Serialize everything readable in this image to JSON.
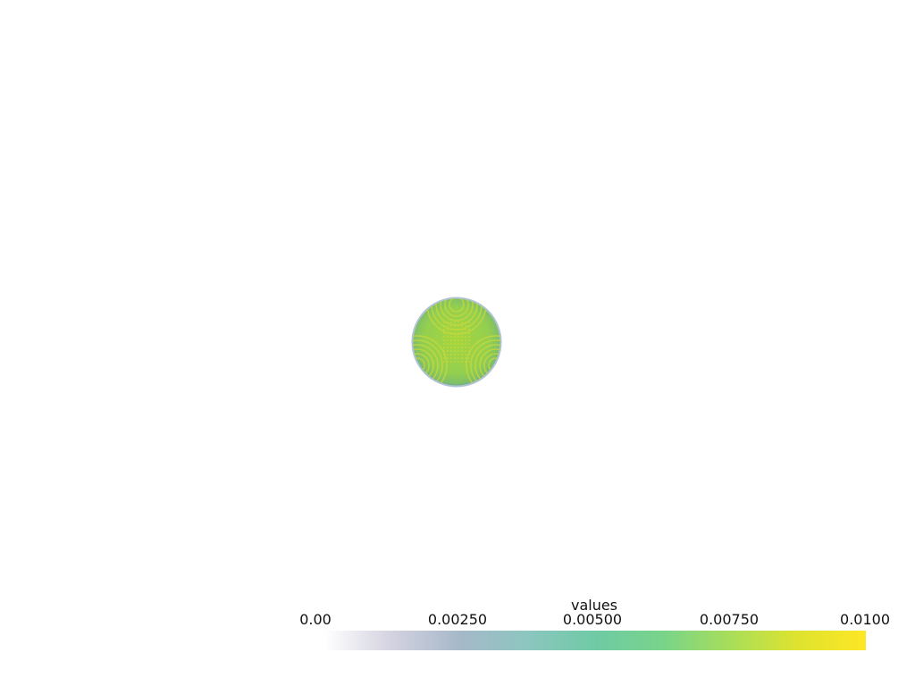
{
  "scalar_bar": {
    "title": "values",
    "ticks": [
      "0.00",
      "0.00250",
      "0.00500",
      "0.00750",
      "0.0100"
    ],
    "range": [
      0.0,
      0.01
    ],
    "colormap": "viridis",
    "colormap_stops": [
      "#ffffff",
      "#d3d2e0",
      "#a6b8c9",
      "#8cc6c0",
      "#6fcaa5",
      "#78d48a",
      "#a8de5a",
      "#dfe32e",
      "#fde725"
    ]
  },
  "object": {
    "shape": "sphere",
    "fill_color": "#8fcd4d",
    "edge_color": "#5c86a8",
    "pattern_color": "#c9d83b"
  }
}
